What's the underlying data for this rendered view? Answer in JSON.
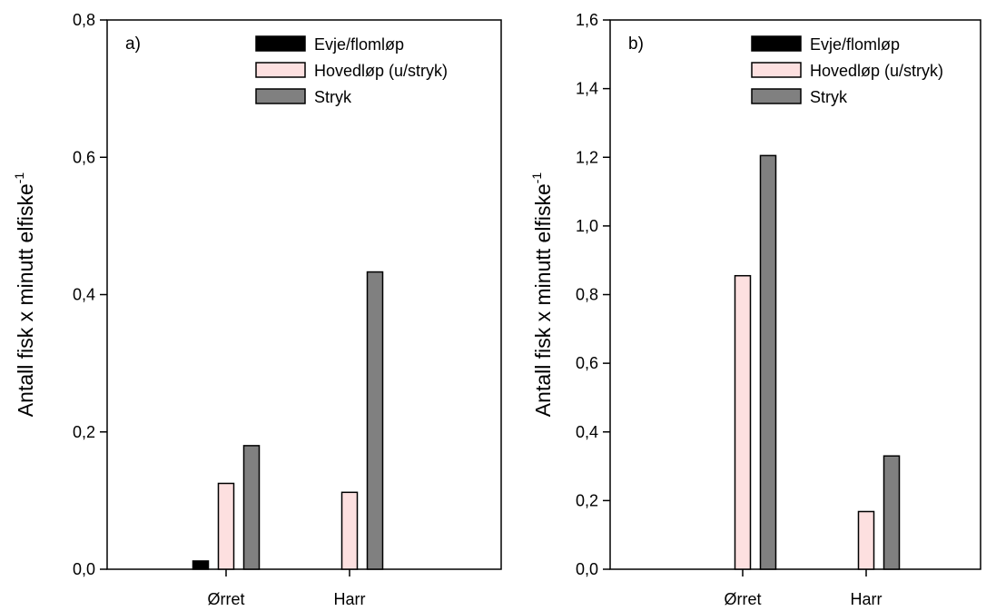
{
  "chart_data": [
    {
      "type": "bar",
      "panel_label": "a)",
      "ylabel": "Antall fisk x minutt elfiske",
      "ylabel_superscript": "-1",
      "ylim": [
        0,
        0.8
      ],
      "yticks": [
        "0,0",
        "0,2",
        "0,4",
        "0,6",
        "0,8"
      ],
      "ytick_values": [
        0,
        0.2,
        0.4,
        0.6,
        0.8
      ],
      "categories": [
        "Ørret",
        "Harr"
      ],
      "legend_position": "top-right",
      "grid": false,
      "series": [
        {
          "name": "Evje/flomløp",
          "color": "#000000",
          "values": [
            0.012,
            0.0
          ]
        },
        {
          "name": "Hovedløp (u/stryk)",
          "color": "#fde0e0",
          "values": [
            0.125,
            0.112
          ]
        },
        {
          "name": "Stryk",
          "color": "#808080",
          "values": [
            0.18,
            0.433
          ]
        }
      ]
    },
    {
      "type": "bar",
      "panel_label": "b)",
      "ylabel": "Antall fisk x minutt elfiske",
      "ylabel_superscript": "-1",
      "ylim": [
        0,
        1.6
      ],
      "yticks": [
        "0,0",
        "0,2",
        "0,4",
        "0,6",
        "0,8",
        "1,0",
        "1,2",
        "1,4",
        "1,6"
      ],
      "ytick_values": [
        0,
        0.2,
        0.4,
        0.6,
        0.8,
        1.0,
        1.2,
        1.4,
        1.6
      ],
      "categories": [
        "Ørret",
        "Harr"
      ],
      "legend_position": "top-right",
      "grid": false,
      "series": [
        {
          "name": "Evje/flomløp",
          "color": "#000000",
          "values": [
            0.0,
            0.0
          ]
        },
        {
          "name": "Hovedløp (u/stryk)",
          "color": "#fde0e0",
          "values": [
            0.855,
            0.168
          ]
        },
        {
          "name": "Stryk",
          "color": "#808080",
          "values": [
            1.205,
            0.33
          ]
        }
      ]
    }
  ]
}
